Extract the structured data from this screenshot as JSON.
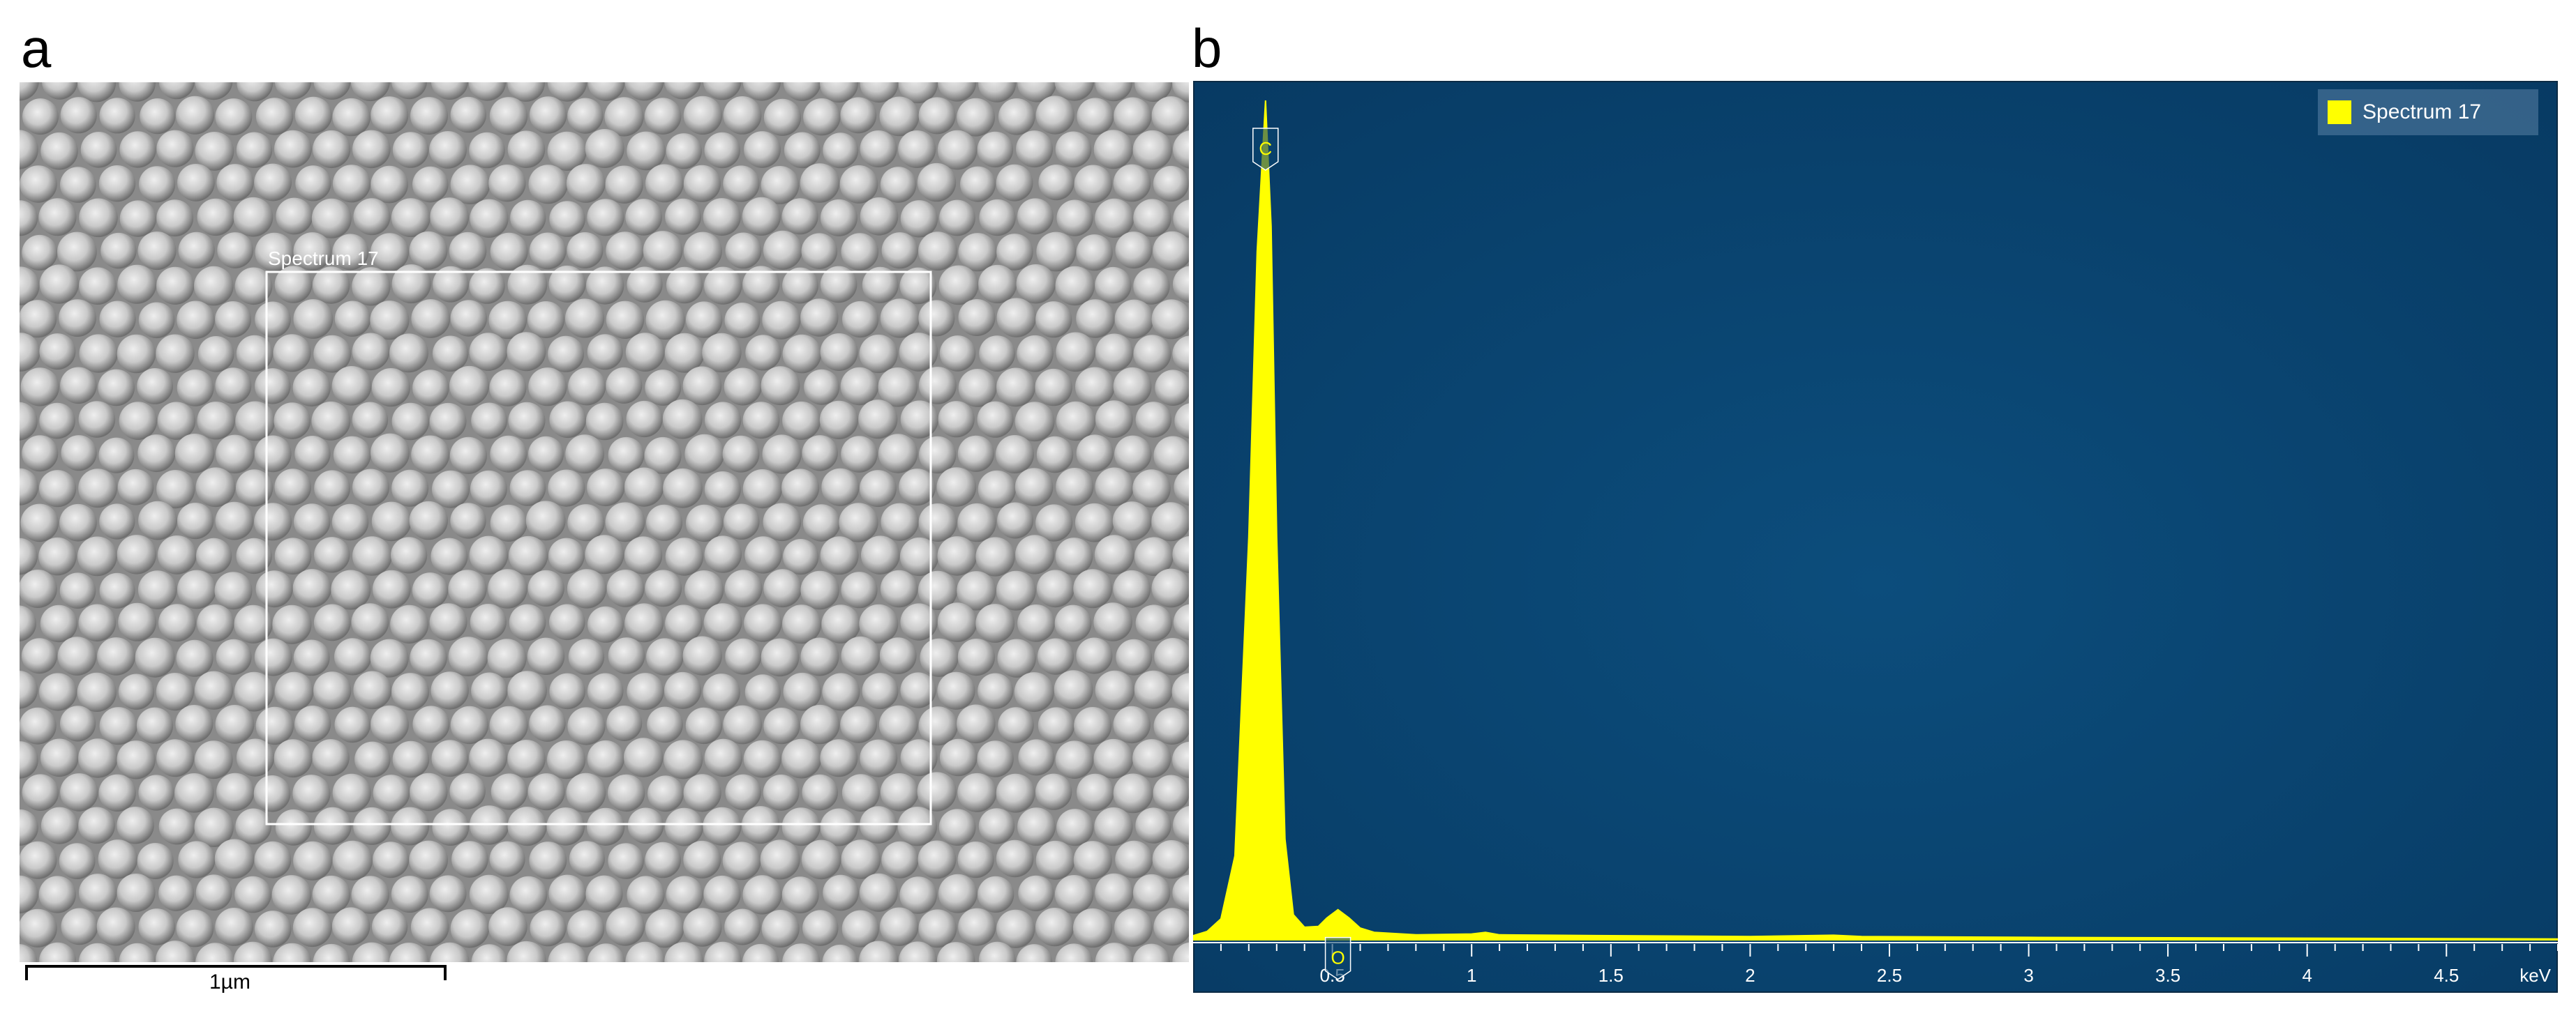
{
  "panels": {
    "a": {
      "letter": "a",
      "region_label": "Spectrum 17",
      "scale_bar_label": "1µm"
    },
    "b": {
      "letter": "b"
    }
  },
  "chart_data": {
    "type": "line",
    "xlabel": "keV",
    "xlim": [
      0,
      4.9
    ],
    "x_ticks": [
      0.5,
      1,
      1.5,
      2,
      2.5,
      3,
      3.5,
      4,
      4.5
    ],
    "x_tick_labels": [
      "0.5",
      "1",
      "1.5",
      "2",
      "2.5",
      "3",
      "3.5",
      "4",
      "4.5"
    ],
    "legend": {
      "placement": "top-right",
      "entries": [
        "Spectrum 17"
      ]
    },
    "series": [
      {
        "name": "Spectrum 17",
        "color": "#ffff00",
        "fill": true,
        "x": [
          0.0,
          0.05,
          0.1,
          0.15,
          0.2,
          0.23,
          0.26,
          0.28,
          0.3,
          0.33,
          0.36,
          0.4,
          0.45,
          0.48,
          0.52,
          0.56,
          0.6,
          0.65,
          0.8,
          1.0,
          1.05,
          1.1,
          1.5,
          2.0,
          2.3,
          2.4,
          3.0,
          3.5,
          4.0,
          4.5,
          4.9
        ],
        "y": [
          0.5,
          1.0,
          2.5,
          10,
          48,
          82,
          100,
          85,
          48,
          12,
          3.0,
          1.5,
          1.6,
          2.6,
          3.6,
          2.6,
          1.4,
          0.9,
          0.6,
          0.7,
          0.9,
          0.6,
          0.5,
          0.4,
          0.55,
          0.4,
          0.3,
          0.25,
          0.2,
          0.15,
          0.1
        ]
      }
    ],
    "peak_labels": [
      {
        "text": "C",
        "x": 0.26,
        "y": 100
      },
      {
        "text": "O",
        "x": 0.52,
        "y": 3.6
      }
    ]
  },
  "colors": {
    "eds_background": "#0a4470",
    "eds_axis": "#ffffff",
    "sem_background": "#8a8a8a",
    "spectrum": "#ffff00"
  }
}
